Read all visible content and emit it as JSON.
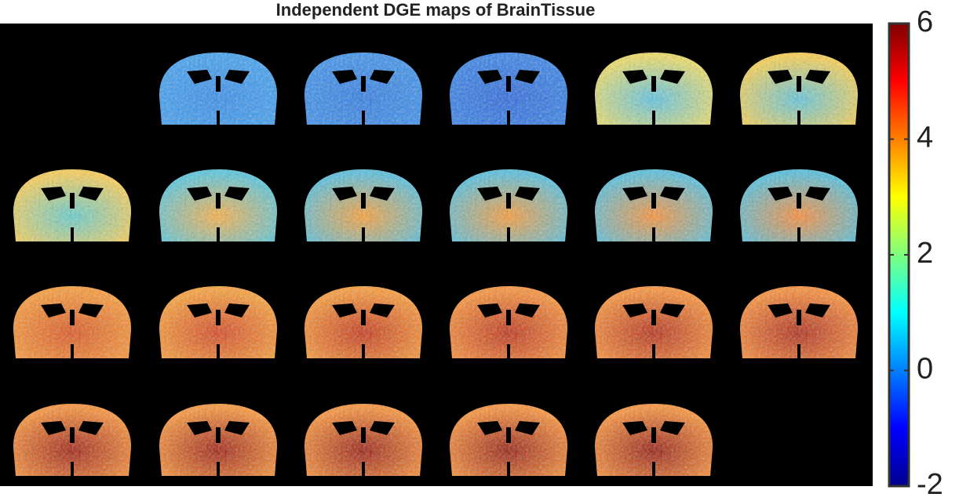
{
  "chart_data": {
    "type": "image-montage",
    "title": "Independent DGE maps of BrainTissue",
    "colormap": "jet",
    "clim": [
      -2,
      6
    ],
    "cticks": [
      -2,
      0,
      2,
      4,
      6
    ]
  }
}
